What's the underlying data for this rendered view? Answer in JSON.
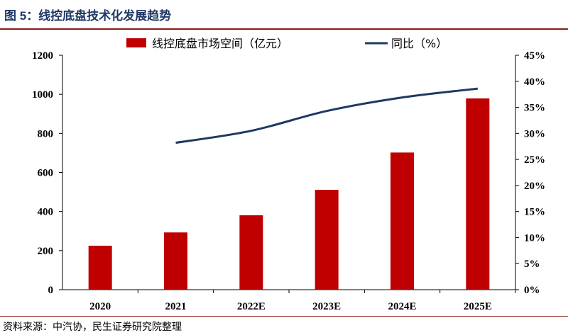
{
  "figure_title": "图 5：线控底盘技术化发展趋势",
  "source_note": "资料来源：中汽协，民生证券研究院整理",
  "colors": {
    "bar": "#c00000",
    "line": "#1f3864",
    "title": "#1f3864",
    "rule": "#8b1a1a"
  },
  "chart_data": {
    "type": "bar",
    "categories": [
      "2020",
      "2021",
      "2022E",
      "2023E",
      "2024E",
      "2025E"
    ],
    "series": [
      {
        "name": "线控底盘市场空间（亿元）",
        "type": "bar",
        "axis": "left",
        "values": [
          225,
          293,
          381,
          511,
          702,
          979
        ]
      },
      {
        "name": "同比（%）",
        "type": "line",
        "axis": "right",
        "values": [
          null,
          28.2,
          30.5,
          34.3,
          36.9,
          38.6
        ]
      }
    ],
    "y_left": {
      "min": 0,
      "max": 1200,
      "ticks": [
        "0",
        "200",
        "400",
        "600",
        "800",
        "1000",
        "1200"
      ]
    },
    "y_right": {
      "min": 0,
      "max": 45,
      "ticks": [
        "0%",
        "5%",
        "10%",
        "15%",
        "20%",
        "25%",
        "30%",
        "35%",
        "40%",
        "45%"
      ]
    },
    "legend_position": "top",
    "grid": false
  }
}
